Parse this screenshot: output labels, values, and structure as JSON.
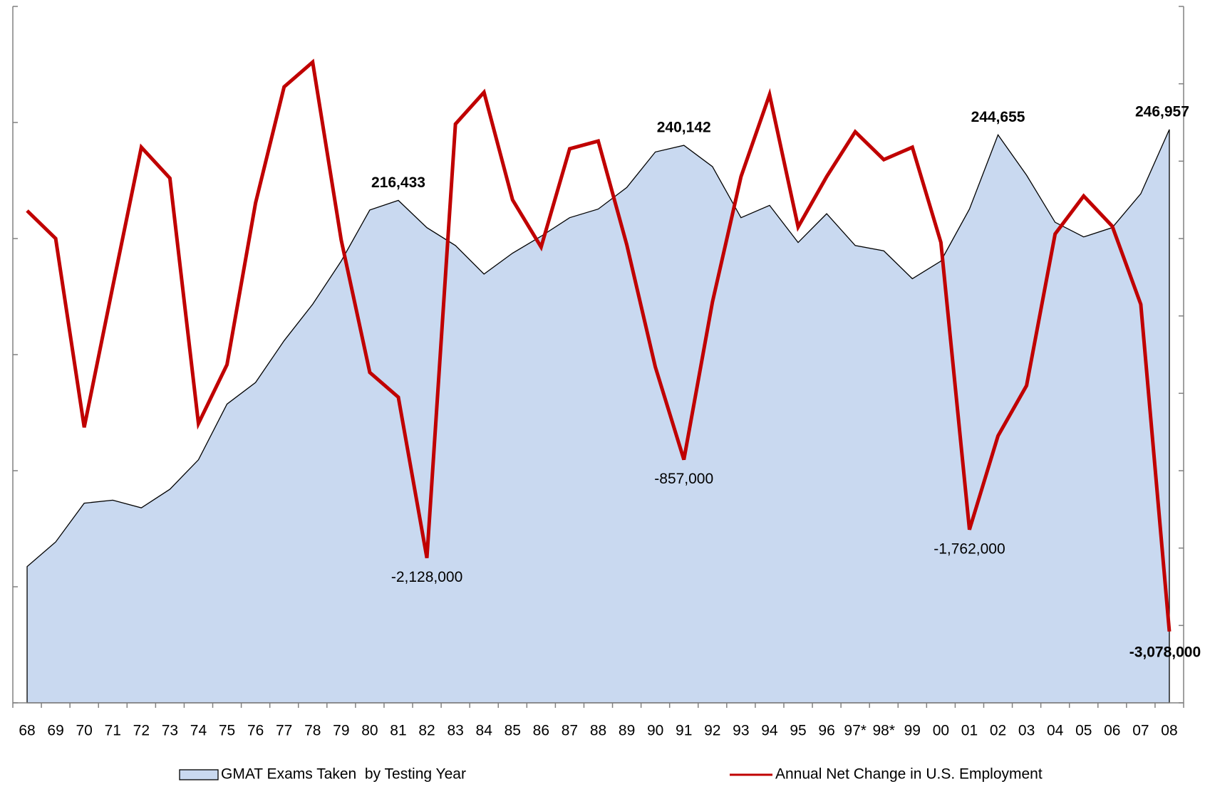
{
  "chart_data": {
    "type": "area-line",
    "categories": [
      "68",
      "69",
      "70",
      "71",
      "72",
      "73",
      "74",
      "75",
      "76",
      "77",
      "78",
      "79",
      "80",
      "81",
      "82",
      "83",
      "84",
      "85",
      "86",
      "87",
      "88",
      "89",
      "90",
      "91",
      "92",
      "93",
      "94",
      "95",
      "96",
      "97*",
      "98*",
      "99",
      "00",
      "01",
      "02",
      "03",
      "04",
      "05",
      "06",
      "07",
      "08"
    ],
    "series": [
      {
        "name": "GMAT Exams Taken  by Testing Year",
        "type": "area",
        "color": "#c9d9f0",
        "axis": "y",
        "values": [
          58700,
          69300,
          86000,
          87300,
          84000,
          92000,
          104700,
          128700,
          138000,
          156000,
          171700,
          190300,
          212300,
          216433,
          204700,
          197000,
          184700,
          193700,
          201000,
          209000,
          212700,
          222000,
          237300,
          240142,
          231000,
          209000,
          214300,
          198300,
          210700,
          197000,
          194700,
          182700,
          190300,
          212700,
          244655,
          227300,
          207000,
          200700,
          204700,
          219300,
          246957
        ],
        "value_labels": [
          null,
          null,
          null,
          null,
          null,
          null,
          null,
          null,
          null,
          null,
          null,
          null,
          null,
          "216,433",
          null,
          null,
          null,
          null,
          null,
          null,
          null,
          null,
          null,
          "240,142",
          null,
          null,
          null,
          null,
          null,
          null,
          null,
          null,
          null,
          null,
          "244,655",
          null,
          null,
          null,
          null,
          null,
          "246,957"
        ]
      },
      {
        "name": "Annual Net Change in U.S. Employment",
        "type": "line",
        "color": "#c00000",
        "axis": "y2",
        "values": [
          2360000,
          2000000,
          -440000,
          1380000,
          3180000,
          2780000,
          -390000,
          370000,
          2460000,
          3960000,
          4280000,
          1980000,
          270000,
          -50000,
          -2128000,
          3480000,
          3890000,
          2500000,
          1890000,
          3160000,
          3260000,
          1920000,
          340000,
          -857000,
          1180000,
          2800000,
          3860000,
          2150000,
          2800000,
          3380000,
          3020000,
          3180000,
          1950000,
          -1762000,
          -550000,
          100000,
          2060000,
          2550000,
          2160000,
          1150000,
          -3078000
        ],
        "value_labels": [
          null,
          null,
          null,
          null,
          null,
          null,
          null,
          null,
          null,
          null,
          null,
          null,
          null,
          null,
          "-2,128,000",
          null,
          null,
          null,
          null,
          null,
          null,
          null,
          null,
          "-857,000",
          null,
          null,
          null,
          null,
          null,
          null,
          null,
          null,
          null,
          "-1,762,000",
          null,
          null,
          null,
          null,
          null,
          null,
          "-3,078,000"
        ]
      }
    ],
    "ylim": [
      0,
      300000
    ],
    "yticks": [
      0,
      50000,
      100000,
      150000,
      200000,
      250000,
      300000
    ],
    "y2lim": [
      -4000000,
      5000000
    ],
    "y2ticks": [
      -4000000,
      -3000000,
      -2000000,
      -1000000,
      0,
      1000000,
      2000000,
      3000000,
      4000000,
      5000000
    ],
    "grid": false
  }
}
